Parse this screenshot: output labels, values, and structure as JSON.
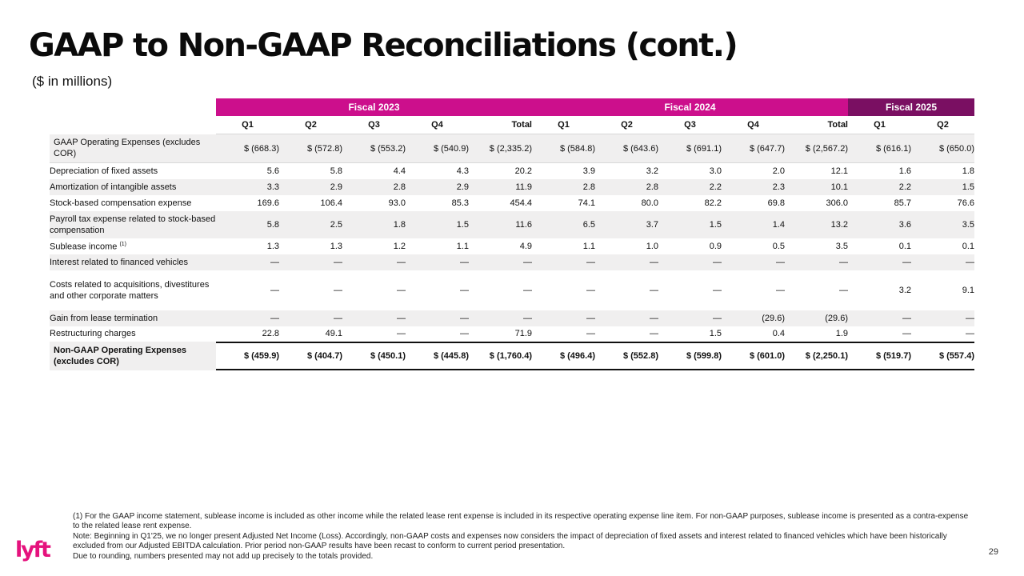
{
  "slide": {
    "title": "GAAP to Non-GAAP Reconciliations (cont.)",
    "subtitle": "($ in millions)",
    "page_number": "29",
    "logo_text": "lyft",
    "colors": {
      "fiscal_2023_2024": "#cc0f8c",
      "fiscal_2025": "#7a0f62",
      "row_shade": "#f0efef"
    }
  },
  "table": {
    "fiscal_years": [
      "Fiscal 2023",
      "Fiscal 2024",
      "Fiscal 2025"
    ],
    "columns": [
      "Q1",
      "Q2",
      "Q3",
      "Q4",
      "Total",
      "Q1",
      "Q2",
      "Q3",
      "Q4",
      "Total",
      "Q1",
      "Q2"
    ],
    "rows": [
      {
        "label": "GAAP Operating Expenses (excludes COR)",
        "values": [
          "$ (668.3)",
          "$ (572.8)",
          "$ (553.2)",
          "$ (540.9)",
          "$ (2,335.2)",
          "$ (584.8)",
          "$ (643.6)",
          "$ (691.1)",
          "$ (647.7)",
          "$ (2,567.2)",
          "$ (616.1)",
          "$ (650.0)"
        ]
      },
      {
        "label": "Depreciation of fixed assets",
        "values": [
          "5.6",
          "5.8",
          "4.4",
          "4.3",
          "20.2",
          "3.9",
          "3.2",
          "3.0",
          "2.0",
          "12.1",
          "1.6",
          "1.8"
        ]
      },
      {
        "label": "Amortization of intangible assets",
        "values": [
          "3.3",
          "2.9",
          "2.8",
          "2.9",
          "11.9",
          "2.8",
          "2.8",
          "2.2",
          "2.3",
          "10.1",
          "2.2",
          "1.5"
        ]
      },
      {
        "label": "Stock-based compensation expense",
        "values": [
          "169.6",
          "106.4",
          "93.0",
          "85.3",
          "454.4",
          "74.1",
          "80.0",
          "82.2",
          "69.8",
          "306.0",
          "85.7",
          "76.6"
        ]
      },
      {
        "label": "Payroll tax expense related to stock-based compensation",
        "values": [
          "5.8",
          "2.5",
          "1.8",
          "1.5",
          "11.6",
          "6.5",
          "3.7",
          "1.5",
          "1.4",
          "13.2",
          "3.6",
          "3.5"
        ]
      },
      {
        "label": "Sublease income",
        "footnote_ref": "(1)",
        "values": [
          "1.3",
          "1.3",
          "1.2",
          "1.1",
          "4.9",
          "1.1",
          "1.0",
          "0.9",
          "0.5",
          "3.5",
          "0.1",
          "0.1"
        ]
      },
      {
        "label": "Interest related to financed vehicles",
        "values": [
          "—",
          "—",
          "—",
          "—",
          "—",
          "—",
          "—",
          "—",
          "—",
          "—",
          "—",
          "—"
        ]
      },
      {
        "label": "Costs related to acquisitions, divestitures and other corporate matters",
        "values": [
          "—",
          "—",
          "—",
          "—",
          "—",
          "—",
          "—",
          "—",
          "—",
          "—",
          "3.2",
          "9.1"
        ]
      },
      {
        "label": "Gain from lease termination",
        "values": [
          "—",
          "—",
          "—",
          "—",
          "—",
          "—",
          "—",
          "—",
          "(29.6)",
          "(29.6)",
          "—",
          "—"
        ]
      },
      {
        "label": "Restructuring charges",
        "values": [
          "22.8",
          "49.1",
          "—",
          "—",
          "71.9",
          "—",
          "—",
          "1.5",
          "0.4",
          "1.9",
          "—",
          "—"
        ]
      },
      {
        "label": "Non-GAAP Operating Expenses (excludes COR)",
        "values": [
          "$ (459.9)",
          "$ (404.7)",
          "$ (450.1)",
          "$ (445.8)",
          "$ (1,760.4)",
          "$ (496.4)",
          "$ (552.8)",
          "$ (599.8)",
          "$ (601.0)",
          "$ (2,250.1)",
          "$ (519.7)",
          "$ (557.4)"
        ]
      }
    ]
  },
  "footnotes": [
    "(1) For the GAAP income statement, sublease income is included as other income while the related lease rent expense is included in its respective operating expense line item. For non-GAAP purposes, sublease income is presented as a contra-expense to the related lease rent expense.",
    "Note: Beginning in Q1'25, we no longer present Adjusted Net Income (Loss). Accordingly, non-GAAP costs and expenses now considers the impact of depreciation of fixed assets and interest related to financed vehicles which have been historically excluded from our Adjusted EBITDA calculation. Prior period non-GAAP results have been recast to conform to current period presentation.",
    "Due to rounding, numbers presented may not add up precisely to the totals provided."
  ]
}
